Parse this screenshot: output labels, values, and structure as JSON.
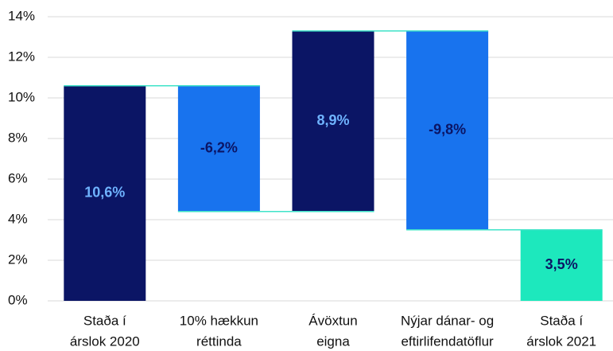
{
  "chart_data": {
    "type": "waterfall",
    "categories": [
      [
        "Staða í",
        "árslok 2020"
      ],
      [
        "10% hækkun",
        "réttinda"
      ],
      [
        "Ávöxtun",
        "eigna"
      ],
      [
        "Nýjar dánar- og",
        "eftirlifendatöflur"
      ],
      [
        "Staða í",
        "árslok 2021"
      ]
    ],
    "values": [
      10.6,
      -6.2,
      8.9,
      -9.8,
      3.5
    ],
    "value_labels": [
      "10,6%",
      "-6,2%",
      "8,9%",
      "-9,8%",
      "3,5%"
    ],
    "is_total": [
      true,
      false,
      false,
      false,
      true
    ],
    "colors": [
      "#0b1565",
      "#1873ee",
      "#0b1565",
      "#1873ee",
      "#1de8bd"
    ],
    "label_colors": [
      "#6fb3ff",
      "#0b1565",
      "#6fb3ff",
      "#0b1565",
      "#0b1565"
    ],
    "connector_color": "#3fe3c8",
    "ylim": [
      0,
      14
    ],
    "yticks": [
      {
        "value": 0,
        "label": "0%"
      },
      {
        "value": 2,
        "label": "2%"
      },
      {
        "value": 4,
        "label": "4%"
      },
      {
        "value": 6,
        "label": "6%"
      },
      {
        "value": 8,
        "label": "8%"
      },
      {
        "value": 10,
        "label": "10%"
      },
      {
        "value": 12,
        "label": "12%"
      },
      {
        "value": 14,
        "label": "14%"
      }
    ],
    "grid": true
  }
}
